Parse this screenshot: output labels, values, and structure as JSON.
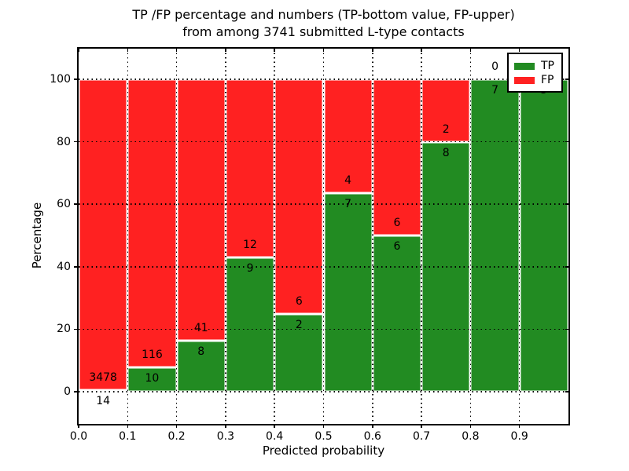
{
  "title": {
    "line1": "TP /FP percentage and numbers (TP-bottom value, FP-upper)",
    "line2": "from among 3741 submitted L-type contacts"
  },
  "total_contacts": "3741",
  "chart_data": {
    "type": "bar",
    "stacked": true,
    "normalized_to_percent": true,
    "title": "TP /FP percentage and numbers (TP-bottom value, FP-upper)\nfrom among 3741 submitted L-type contacts",
    "xlabel": "Predicted probability",
    "ylabel": "Percentage",
    "xlim": [
      0.0,
      1.0
    ],
    "ylim": [
      -10,
      110
    ],
    "grid": "dotted black, on top of bars",
    "xticks": [
      "0.0",
      "0.1",
      "0.2",
      "0.3",
      "0.4",
      "0.5",
      "0.6",
      "0.7",
      "0.8",
      "0.9"
    ],
    "yticks": [
      0,
      20,
      40,
      60,
      80,
      100
    ],
    "bin_width": 0.1,
    "series": [
      {
        "name": "TP",
        "color": "#228b22",
        "position": "bottom"
      },
      {
        "name": "FP",
        "color": "#ff2121",
        "position": "top"
      }
    ],
    "bins": [
      {
        "x_start": 0.0,
        "x_end": 0.1,
        "tp": 14,
        "fp": 3478,
        "tp_percent": 0.4
      },
      {
        "x_start": 0.1,
        "x_end": 0.2,
        "tp": 10,
        "fp": 116,
        "tp_percent": 7.9
      },
      {
        "x_start": 0.2,
        "x_end": 0.3,
        "tp": 8,
        "fp": 41,
        "tp_percent": 16.3
      },
      {
        "x_start": 0.3,
        "x_end": 0.4,
        "tp": 9,
        "fp": 12,
        "tp_percent": 42.9
      },
      {
        "x_start": 0.4,
        "x_end": 0.5,
        "tp": 2,
        "fp": 6,
        "tp_percent": 25.0
      },
      {
        "x_start": 0.5,
        "x_end": 0.6,
        "tp": 7,
        "fp": 4,
        "tp_percent": 63.6
      },
      {
        "x_start": 0.6,
        "x_end": 0.7,
        "tp": 6,
        "fp": 6,
        "tp_percent": 50.0
      },
      {
        "x_start": 0.7,
        "x_end": 0.8,
        "tp": 8,
        "fp": 2,
        "tp_percent": 80.0
      },
      {
        "x_start": 0.8,
        "x_end": 0.9,
        "tp": 7,
        "fp": 0,
        "tp_percent": 100.0
      },
      {
        "x_start": 0.9,
        "x_end": 1.0,
        "tp": 5,
        "fp": 0,
        "tp_percent": 100.0
      }
    ],
    "legend": {
      "position": "upper right",
      "entries": [
        {
          "label": "TP",
          "color": "#228b22"
        },
        {
          "label": "FP",
          "color": "#ff2121"
        }
      ]
    }
  },
  "colors": {
    "tp": "#228b22",
    "fp": "#ff2121",
    "grid": "#000000",
    "bar_edge": "#ffffff",
    "background": "#ffffff",
    "text": "#000000"
  }
}
